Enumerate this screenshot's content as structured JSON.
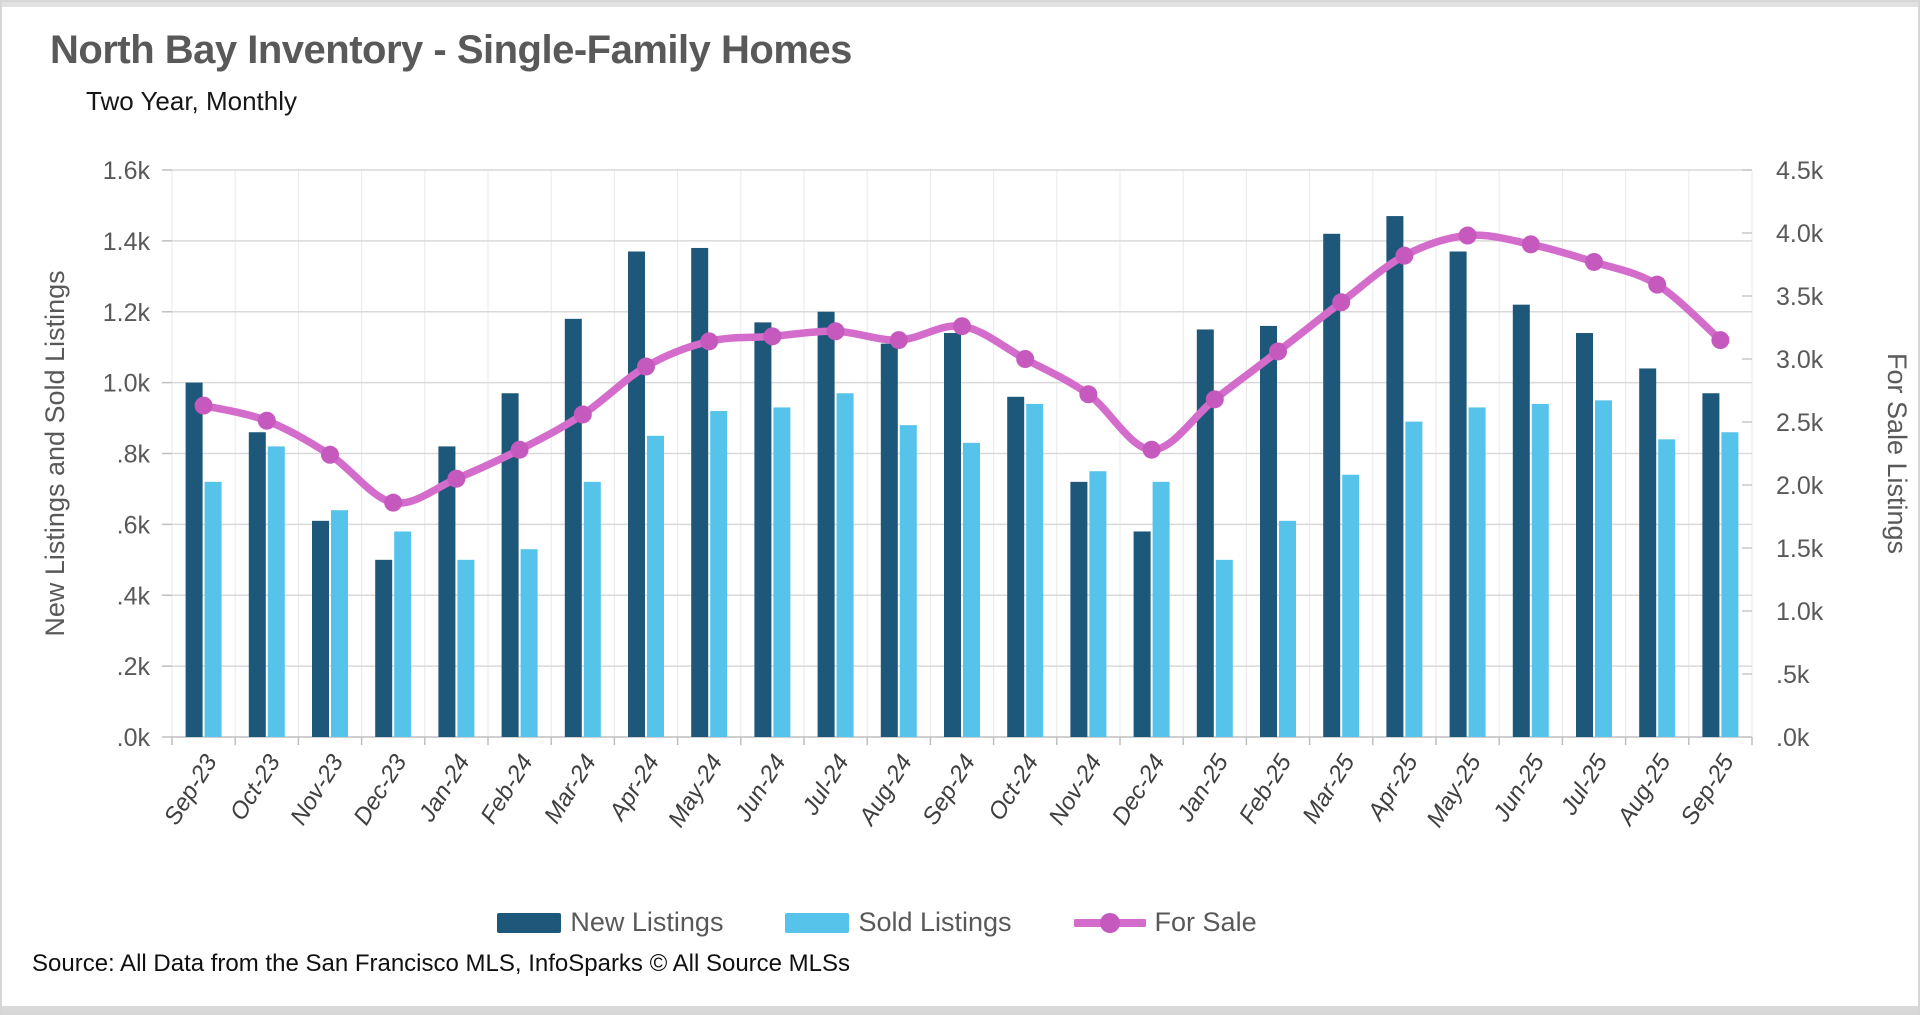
{
  "header": {
    "title": "North Bay Inventory - Single-Family Homes",
    "subtitle": "Two Year, Monthly"
  },
  "source": {
    "text": "Source: All Data from the San Francisco MLS, InfoSparks © All Source MLSs"
  },
  "legend": {
    "items": [
      {
        "label": "New Listings",
        "color": "#1d587a",
        "type": "bar"
      },
      {
        "label": "Sold Listings",
        "color": "#56c3ea",
        "type": "bar"
      },
      {
        "label": "For Sale",
        "color": "#d46ccb",
        "marker_color": "#c659bd",
        "type": "line"
      }
    ]
  },
  "chart_data": {
    "type": "bar",
    "categories": [
      "Sep-23",
      "Oct-23",
      "Nov-23",
      "Dec-23",
      "Jan-24",
      "Feb-24",
      "Mar-24",
      "Apr-24",
      "May-24",
      "Jun-24",
      "Jul-24",
      "Aug-24",
      "Sep-24",
      "Oct-24",
      "Nov-24",
      "Dec-24",
      "Jan-25",
      "Feb-25",
      "Mar-25",
      "Apr-25",
      "May-25",
      "Jun-25",
      "Jul-25",
      "Aug-25",
      "Sep-25"
    ],
    "series": [
      {
        "name": "New Listings",
        "type": "bar",
        "axis": "left",
        "color": "#1d587a",
        "values": [
          1000,
          860,
          610,
          500,
          820,
          970,
          1180,
          1370,
          1380,
          1170,
          1200,
          1110,
          1140,
          960,
          720,
          580,
          1150,
          1160,
          1420,
          1470,
          1370,
          1220,
          1140,
          1040,
          970
        ]
      },
      {
        "name": "Sold Listings",
        "type": "bar",
        "axis": "left",
        "color": "#56c3ea",
        "values": [
          720,
          820,
          640,
          580,
          500,
          530,
          720,
          850,
          920,
          930,
          970,
          880,
          830,
          940,
          750,
          720,
          500,
          610,
          740,
          890,
          930,
          940,
          950,
          840,
          860
        ]
      },
      {
        "name": "For Sale",
        "type": "line",
        "axis": "right",
        "color": "#d46ccb",
        "marker_color": "#c659bd",
        "values": [
          2630,
          2510,
          2240,
          1860,
          2050,
          2280,
          2560,
          2940,
          3140,
          3180,
          3220,
          3150,
          3260,
          3000,
          2720,
          2280,
          2680,
          3060,
          3450,
          3820,
          3980,
          3910,
          3770,
          3590,
          3150
        ]
      }
    ],
    "left_axis": {
      "title": "New Listings and Sold Listings",
      "max": 1600,
      "ticks": [
        "1.6k",
        "1.4k",
        "1.2k",
        "1.0k",
        ".8k",
        ".6k",
        ".4k",
        ".2k",
        ".0k"
      ]
    },
    "right_axis": {
      "title": "For Sale Listings",
      "max": 4500,
      "ticks": [
        "4.5k",
        "4.0k",
        "3.5k",
        "3.0k",
        "2.5k",
        "2.0k",
        "1.5k",
        "1.0k",
        ".5k",
        ".0k"
      ]
    },
    "grid": "horizontal and vertical, light gray",
    "legend_position": "bottom center"
  }
}
